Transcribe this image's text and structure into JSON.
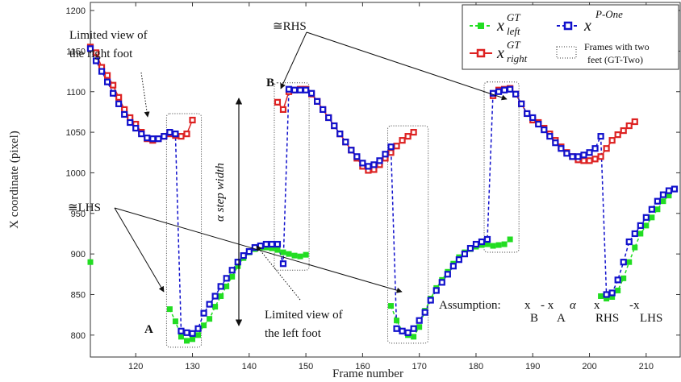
{
  "chart_data": {
    "type": "line",
    "xlabel": "Frame number",
    "ylabel": "X coordinate (pixel)",
    "xlim": [
      112,
      216
    ],
    "ylim": [
      773,
      1210
    ],
    "xticks": [
      120,
      130,
      140,
      150,
      160,
      170,
      180,
      190,
      200,
      210
    ],
    "yticks": [
      800,
      850,
      900,
      950,
      1000,
      1050,
      1100,
      1150,
      1200
    ],
    "grid": false,
    "legend_position": "top-right",
    "colors": {
      "left": "#22dd22",
      "right": "#dd2222",
      "pone": "#1111cc"
    },
    "series": [
      {
        "key": "left",
        "name_main": "x",
        "name_sup": "GT",
        "name_sub": "left",
        "color": "#22dd22",
        "x": [
          112,
          126,
          127,
          128,
          129,
          130,
          131,
          132,
          133,
          134,
          135,
          136,
          137,
          138,
          139,
          140,
          141,
          142,
          143,
          144,
          145,
          146,
          147,
          148,
          149,
          150,
          165,
          166,
          167,
          168,
          169,
          170,
          171,
          172,
          173,
          174,
          175,
          176,
          177,
          178,
          179,
          180,
          181,
          182,
          183,
          184,
          185,
          186,
          202,
          203,
          204,
          205,
          206,
          207,
          208,
          209,
          210,
          211,
          212,
          213,
          214
        ],
        "y": [
          890,
          832,
          817,
          798,
          793,
          795,
          800,
          812,
          820,
          835,
          848,
          860,
          872,
          885,
          895,
          902,
          906,
          908,
          908,
          907,
          905,
          902,
          900,
          898,
          897,
          899,
          836,
          818,
          805,
          800,
          798,
          810,
          830,
          845,
          858,
          868,
          878,
          888,
          896,
          902,
          906,
          909,
          911,
          912,
          910,
          911,
          912,
          918,
          848,
          845,
          847,
          855,
          870,
          890,
          908,
          925,
          935,
          945,
          955,
          965,
          972
        ]
      },
      {
        "key": "right",
        "name_main": "x",
        "name_sup": "GT",
        "name_sub": "right",
        "color": "#dd2222",
        "x": [
          112,
          113,
          114,
          115,
          116,
          117,
          118,
          119,
          120,
          121,
          122,
          123,
          124,
          125,
          126,
          127,
          128,
          129,
          130,
          145,
          146,
          147,
          148,
          149,
          150,
          151,
          152,
          153,
          154,
          155,
          156,
          157,
          158,
          159,
          160,
          161,
          162,
          163,
          164,
          165,
          166,
          167,
          168,
          169,
          183,
          184,
          185,
          186,
          187,
          188,
          189,
          190,
          191,
          192,
          193,
          194,
          195,
          196,
          197,
          198,
          199,
          200,
          201,
          202,
          203,
          204,
          205,
          206,
          207,
          208
        ],
        "y": [
          1155,
          1148,
          1130,
          1120,
          1108,
          1093,
          1078,
          1068,
          1060,
          1050,
          1042,
          1040,
          1042,
          1045,
          1048,
          1046,
          1045,
          1048,
          1065,
          1087,
          1078,
          1100,
          1102,
          1103,
          1103,
          1097,
          1088,
          1078,
          1068,
          1058,
          1048,
          1038,
          1028,
          1018,
          1008,
          1003,
          1004,
          1010,
          1018,
          1025,
          1033,
          1040,
          1045,
          1050,
          1095,
          1102,
          1103,
          1104,
          1097,
          1085,
          1073,
          1065,
          1062,
          1055,
          1048,
          1040,
          1032,
          1025,
          1020,
          1016,
          1015,
          1015,
          1017,
          1020,
          1030,
          1040,
          1047,
          1052,
          1058,
          1063
        ]
      },
      {
        "key": "pone",
        "name_main": "x",
        "name_sup": "P-One",
        "name_sub": "",
        "color": "#1111cc",
        "x": [
          112,
          113,
          114,
          115,
          116,
          117,
          118,
          119,
          120,
          121,
          122,
          123,
          124,
          125,
          126,
          127,
          128,
          129,
          130,
          131,
          132,
          133,
          134,
          135,
          136,
          137,
          138,
          139,
          140,
          141,
          142,
          143,
          144,
          145,
          146,
          147,
          148,
          149,
          150,
          151,
          152,
          153,
          154,
          155,
          156,
          157,
          158,
          159,
          160,
          161,
          162,
          163,
          164,
          165,
          166,
          167,
          168,
          169,
          170,
          171,
          172,
          173,
          174,
          175,
          176,
          177,
          178,
          179,
          180,
          181,
          182,
          183,
          184,
          185,
          186,
          187,
          188,
          189,
          190,
          191,
          192,
          193,
          194,
          195,
          196,
          197,
          198,
          199,
          200,
          201,
          202,
          203,
          204,
          205,
          206,
          207,
          208,
          209,
          210,
          211,
          212,
          213,
          214,
          215
        ],
        "y": [
          1153,
          1138,
          1125,
          1112,
          1098,
          1085,
          1072,
          1062,
          1055,
          1048,
          1043,
          1042,
          1042,
          1045,
          1050,
          1048,
          805,
          803,
          802,
          808,
          827,
          838,
          848,
          860,
          870,
          880,
          890,
          898,
          903,
          908,
          910,
          912,
          912,
          912,
          888,
          1103,
          1102,
          1102,
          1102,
          1098,
          1088,
          1078,
          1068,
          1058,
          1048,
          1038,
          1028,
          1020,
          1012,
          1008,
          1010,
          1015,
          1023,
          1032,
          808,
          805,
          803,
          808,
          818,
          828,
          843,
          855,
          865,
          875,
          885,
          893,
          900,
          907,
          912,
          915,
          918,
          1098,
          1100,
          1102,
          1103,
          1097,
          1085,
          1073,
          1068,
          1060,
          1053,
          1045,
          1037,
          1030,
          1024,
          1020,
          1020,
          1022,
          1025,
          1030,
          1045,
          850,
          852,
          868,
          890,
          915,
          925,
          935,
          945,
          955,
          965,
          973,
          978,
          980
        ]
      }
    ],
    "gt_two_boxes": [
      [
        126,
        131
      ],
      [
        145,
        150
      ],
      [
        165,
        171
      ],
      [
        182,
        187
      ]
    ],
    "annotations": {
      "limited_right": [
        "Limited view of",
        "the right foot"
      ],
      "limited_left": [
        "Limited view of",
        "the left foot"
      ],
      "rhs": "≅RHS",
      "lhs": "≅LHS",
      "point_a": "A",
      "point_b": "B",
      "step_width": "α step width",
      "assumption_label": "Assumption:",
      "assumption_terms": [
        "x",
        "- x",
        "α",
        "x",
        "-x"
      ],
      "assumption_subs": [
        "B",
        "A",
        "RHS",
        "LHS"
      ]
    },
    "legend": {
      "gt_two": [
        "Frames with two",
        "feet (GT-Two)"
      ]
    }
  }
}
